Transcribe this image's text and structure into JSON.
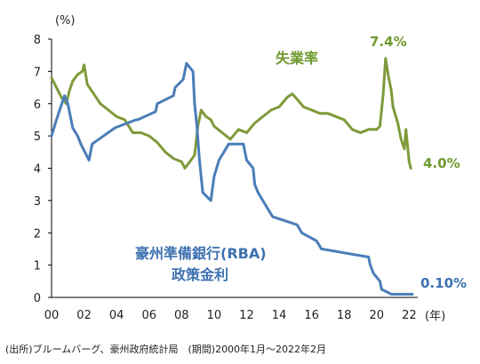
{
  "chart_data": {
    "type": "line",
    "y_unit_label": "(%)",
    "x_unit_label": "(年)",
    "ylim": [
      0,
      8
    ],
    "xlim": [
      2000,
      2022.2
    ],
    "y_ticks": [
      "0",
      "1",
      "2",
      "3",
      "4",
      "5",
      "6",
      "7",
      "8"
    ],
    "x_ticks": [
      "00",
      "02",
      "04",
      "06",
      "08",
      "10",
      "12",
      "14",
      "16",
      "18",
      "20",
      "22"
    ],
    "grid": false,
    "source_note": "(出所)ブルームバーグ、豪州政府統計局　(期間)2000年1月～2022年2月",
    "annotations": {
      "unemployment_peak": "7.4%",
      "unemployment_end": "4.0%",
      "rate_end": "0.10%"
    },
    "series": [
      {
        "name": "失業率",
        "color": "#7f9a3a",
        "label_color": "#6f9a2e",
        "x": [
          2000.0,
          2000.3,
          2000.6,
          2000.9,
          2001.1,
          2001.3,
          2001.6,
          2001.9,
          2002.0,
          2002.2,
          2002.6,
          2003.0,
          2003.5,
          2004.0,
          2004.5,
          2005.0,
          2005.5,
          2006.0,
          2006.5,
          2007.0,
          2007.5,
          2008.0,
          2008.2,
          2008.5,
          2008.8,
          2009.0,
          2009.2,
          2009.5,
          2009.8,
          2010.0,
          2010.5,
          2011.0,
          2011.5,
          2012.0,
          2012.5,
          2013.0,
          2013.5,
          2014.0,
          2014.5,
          2014.8,
          2015.0,
          2015.5,
          2016.0,
          2016.5,
          2017.0,
          2017.5,
          2018.0,
          2018.5,
          2019.0,
          2019.5,
          2020.0,
          2020.2,
          2020.4,
          2020.55,
          2020.7,
          2020.9,
          2021.0,
          2021.3,
          2021.5,
          2021.7,
          2021.8,
          2022.0,
          2022.1
        ],
        "values": [
          6.8,
          6.5,
          6.2,
          6.0,
          6.4,
          6.7,
          6.9,
          7.0,
          7.2,
          6.6,
          6.3,
          6.0,
          5.8,
          5.6,
          5.5,
          5.1,
          5.1,
          5.0,
          4.8,
          4.5,
          4.3,
          4.2,
          4.0,
          4.2,
          4.4,
          5.3,
          5.8,
          5.6,
          5.5,
          5.3,
          5.1,
          4.9,
          5.2,
          5.1,
          5.4,
          5.6,
          5.8,
          5.9,
          6.2,
          6.3,
          6.2,
          5.9,
          5.8,
          5.7,
          5.7,
          5.6,
          5.5,
          5.2,
          5.1,
          5.2,
          5.2,
          5.3,
          6.3,
          7.4,
          6.9,
          6.4,
          5.9,
          5.4,
          4.9,
          4.6,
          5.2,
          4.2,
          4.0
        ]
      },
      {
        "name": "豪州準備銀行(RBA) 政策金利",
        "name_line1": "豪州準備銀行(RBA)",
        "name_line2": "政策金利",
        "color": "#4a7eb8",
        "label_color": "#3e72b0",
        "x": [
          2000.0,
          2000.3,
          2000.8,
          2001.0,
          2001.3,
          2001.6,
          2001.8,
          2002.3,
          2002.5,
          2003.9,
          2005.2,
          2005.3,
          2006.4,
          2006.5,
          2007.5,
          2007.6,
          2008.1,
          2008.3,
          2008.7,
          2008.8,
          2008.95,
          2009.1,
          2009.3,
          2009.8,
          2010.0,
          2010.3,
          2010.9,
          2011.8,
          2011.9,
          2012.0,
          2012.4,
          2012.5,
          2012.7,
          2013.0,
          2013.3,
          2013.6,
          2015.1,
          2015.4,
          2016.3,
          2016.6,
          2019.5,
          2019.6,
          2019.8,
          2020.2,
          2020.3,
          2020.9,
          2021.0,
          2022.2
        ],
        "values": [
          5.0,
          5.5,
          6.25,
          6.0,
          5.25,
          5.0,
          4.75,
          4.25,
          4.75,
          5.25,
          5.5,
          5.5,
          5.75,
          6.0,
          6.25,
          6.5,
          6.75,
          7.25,
          7.0,
          6.0,
          5.25,
          4.25,
          3.25,
          3.0,
          3.75,
          4.25,
          4.75,
          4.75,
          4.5,
          4.25,
          4.0,
          3.5,
          3.25,
          3.0,
          2.75,
          2.5,
          2.25,
          2.0,
          1.75,
          1.5,
          1.25,
          1.0,
          0.75,
          0.5,
          0.25,
          0.1,
          0.1,
          0.1
        ]
      }
    ]
  }
}
